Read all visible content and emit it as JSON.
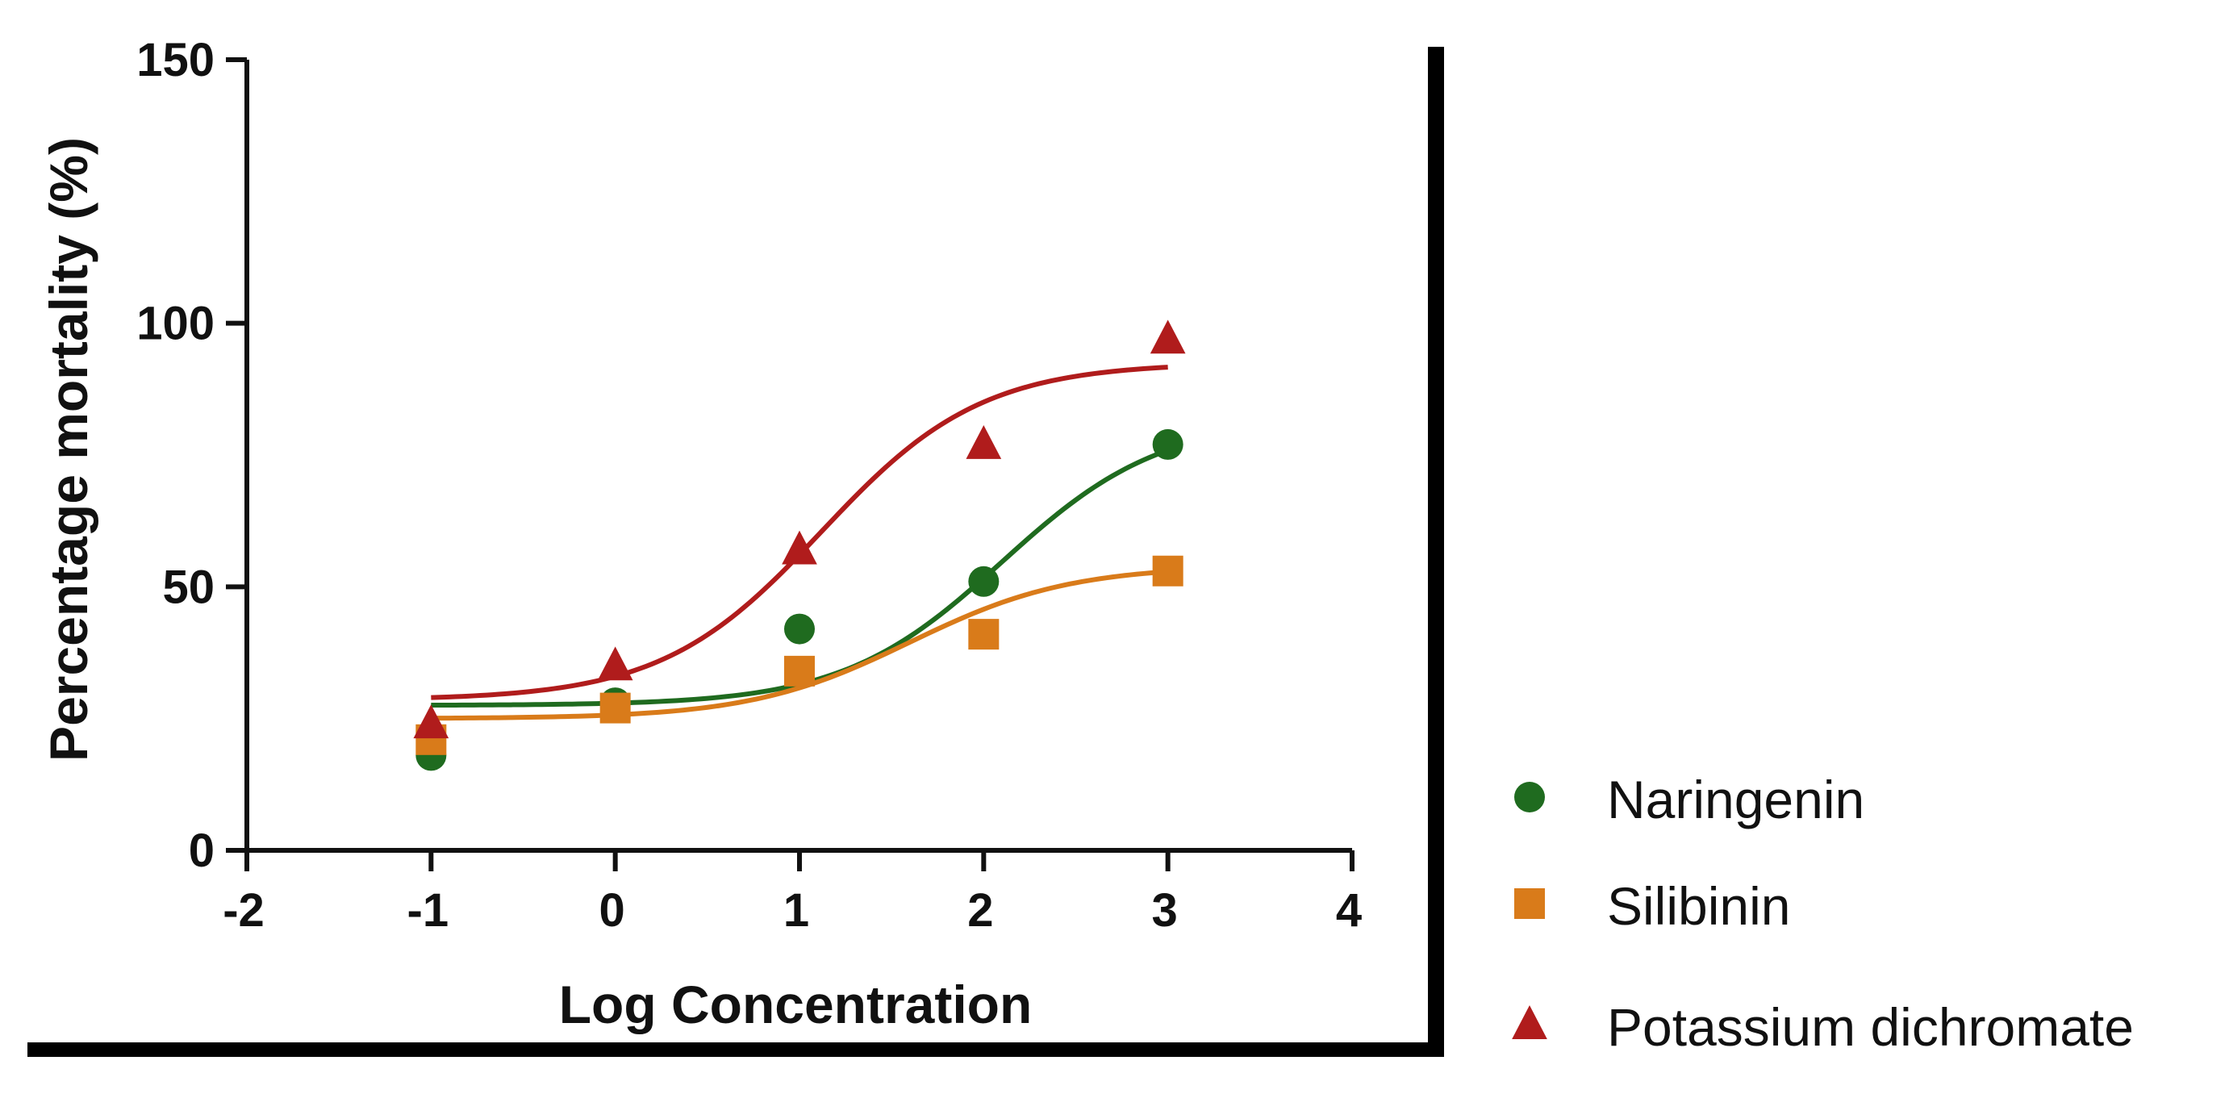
{
  "chart_data": {
    "type": "scatter",
    "title": "",
    "xlabel": "Log Concentration",
    "ylabel": "Percentage mortality (%)",
    "xlim": [
      -2,
      4
    ],
    "ylim": [
      0,
      150
    ],
    "x_ticks": [
      -2,
      -1,
      0,
      1,
      2,
      3,
      4
    ],
    "y_ticks": [
      0,
      50,
      100,
      150
    ],
    "grid": false,
    "legend_position": "bottom-right outside",
    "series": [
      {
        "name": "Naringenin",
        "marker": "circle",
        "color": "#1f6b1f",
        "x": [
          -1,
          0,
          1,
          2,
          3
        ],
        "y": [
          18,
          28,
          42,
          51,
          77
        ],
        "fit": {
          "model": "sigmoid",
          "bottom": 27.5,
          "top": 82,
          "logEC50": 2.1,
          "hill": 1.0
        }
      },
      {
        "name": "Silibinin",
        "marker": "square",
        "color": "#d97b1a",
        "x": [
          -1,
          0,
          1,
          2,
          3
        ],
        "y": [
          21,
          27,
          34,
          41,
          53
        ],
        "fit": {
          "model": "sigmoid",
          "bottom": 25,
          "top": 54,
          "logEC50": 1.6,
          "hill": 1.0
        }
      },
      {
        "name": "Potassium dichromate",
        "marker": "triangle",
        "color": "#b01c1c",
        "x": [
          -1,
          0,
          1,
          2,
          3
        ],
        "y": [
          24,
          35,
          57,
          77,
          97
        ],
        "fit": {
          "model": "sigmoid",
          "bottom": 28.5,
          "top": 92.5,
          "logEC50": 1.12,
          "hill": 1.0
        }
      }
    ]
  }
}
